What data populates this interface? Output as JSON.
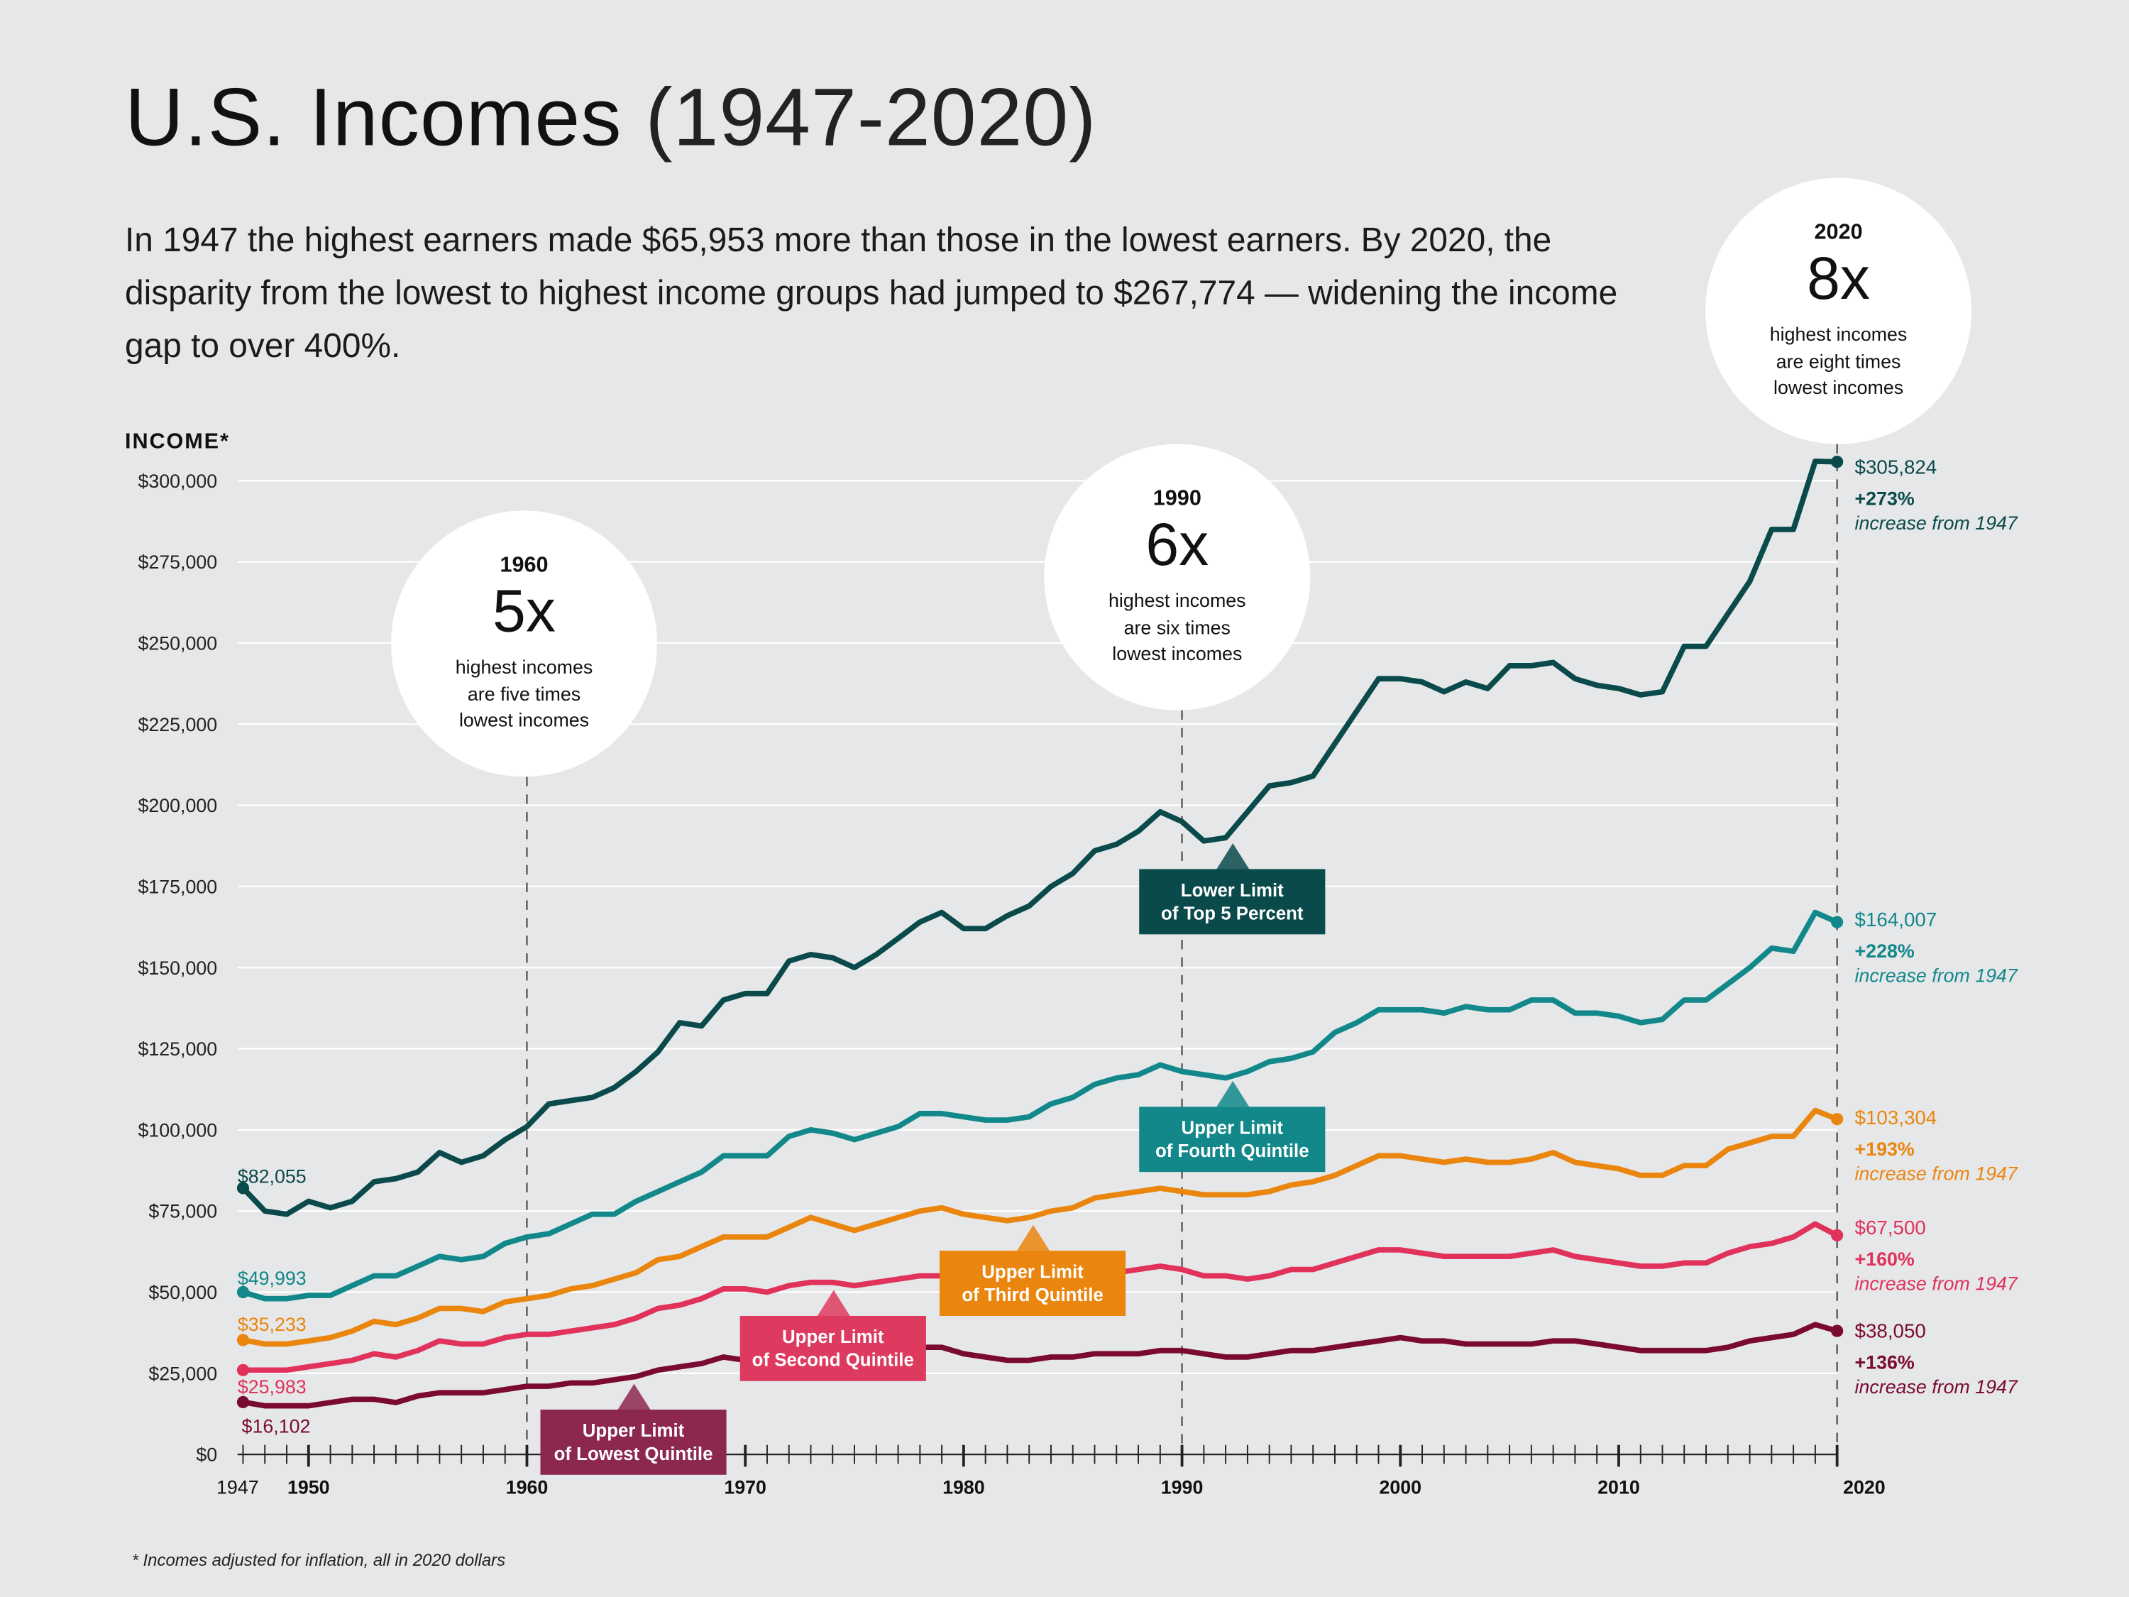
{
  "header": {
    "title": "U.S. Incomes",
    "title_years": "(1947-2020)",
    "intro": "In 1947 the highest earners made $65,953 more than those in the lowest earners. By 2020, the disparity from the lowest to highest income groups had jumped to $267,774 — widening the income gap to over 400%."
  },
  "circles": [
    {
      "year": "1960",
      "multiple": "5x",
      "line1": "highest incomes",
      "line2": "are five times",
      "line3": "lowest incomes"
    },
    {
      "year": "1990",
      "multiple": "6x",
      "line1": "highest incomes",
      "line2": "are six times",
      "line3": "lowest incomes"
    },
    {
      "year": "2020",
      "multiple": "8x",
      "line1": "highest incomes",
      "line2": "are eight times",
      "line3": "lowest incomes"
    }
  ],
  "footnote": "* Incomes adjusted for inflation, all in 2020 dollars",
  "chart_data": {
    "type": "line",
    "title": "U.S. Incomes (1947-2020)",
    "ylabel": "INCOME*",
    "xlabel": "",
    "xlim": [
      1947,
      2020
    ],
    "ylim": [
      0,
      300000
    ],
    "grid": true,
    "y_ticks": [
      "$0",
      "$25,000",
      "$50,000",
      "$75,000",
      "$100,000",
      "$125,000",
      "$150,000",
      "$175,000",
      "$200,000",
      "$225,000",
      "$250,000",
      "$275,000",
      "$300,000"
    ],
    "y_tick_values": [
      0,
      25000,
      50000,
      75000,
      100000,
      125000,
      150000,
      175000,
      200000,
      225000,
      250000,
      275000,
      300000
    ],
    "x_tick_labels": [
      {
        "year": 1947,
        "label": "1947",
        "bold": false
      },
      {
        "year": 1950,
        "label": "1950",
        "bold": true
      },
      {
        "year": 1960,
        "label": "1960",
        "bold": true
      },
      {
        "year": 1970,
        "label": "1970",
        "bold": true
      },
      {
        "year": 1980,
        "label": "1980",
        "bold": true
      },
      {
        "year": 1990,
        "label": "1990",
        "bold": true
      },
      {
        "year": 2000,
        "label": "2000",
        "bold": true
      },
      {
        "year": 2010,
        "label": "2010",
        "bold": true
      },
      {
        "year": 2020,
        "label": "2020",
        "bold": true
      }
    ],
    "reference_years": [
      1960,
      1990,
      2020
    ],
    "series": [
      {
        "name": "Lower Limit of Top 5 Percent",
        "line1": "Lower Limit",
        "line2": "of Top 5 Percent",
        "color": "#0b4a4b",
        "box_color": "#0b4a4b",
        "start_label": "$82,055",
        "end_label": "$305,824",
        "pct": "+273%",
        "pct_text": "increase from 1947",
        "values": [
          82055,
          75000,
          74000,
          78000,
          76000,
          78000,
          84000,
          85000,
          87000,
          93000,
          90000,
          92000,
          97000,
          101000,
          108000,
          109000,
          110000,
          113000,
          118000,
          124000,
          133000,
          132000,
          140000,
          142000,
          142000,
          152000,
          154000,
          153000,
          150000,
          154000,
          159000,
          164000,
          167000,
          162000,
          162000,
          166000,
          169000,
          175000,
          179000,
          186000,
          188000,
          192000,
          198000,
          195000,
          189000,
          190000,
          198000,
          206000,
          207000,
          209000,
          219000,
          229000,
          239000,
          239000,
          238000,
          235000,
          238000,
          236000,
          243000,
          243000,
          244000,
          239000,
          237000,
          236000,
          234000,
          235000,
          249000,
          249000,
          259000,
          269000,
          285000,
          285000,
          306000,
          305824
        ]
      },
      {
        "name": "Upper Limit of Fourth Quintile",
        "line1": "Upper Limit",
        "line2": "of Fourth Quintile",
        "color": "#12888a",
        "box_color": "#12888a",
        "start_label": "$49,993",
        "end_label": "$164,007",
        "pct": "+228%",
        "pct_text": "increase from 1947",
        "values": [
          49993,
          48000,
          48000,
          49000,
          49000,
          52000,
          55000,
          55000,
          58000,
          61000,
          60000,
          61000,
          65000,
          67000,
          68000,
          71000,
          74000,
          74000,
          78000,
          81000,
          84000,
          87000,
          92000,
          92000,
          92000,
          98000,
          100000,
          99000,
          97000,
          99000,
          101000,
          105000,
          105000,
          104000,
          103000,
          103000,
          104000,
          108000,
          110000,
          114000,
          116000,
          117000,
          120000,
          118000,
          117000,
          116000,
          118000,
          121000,
          122000,
          124000,
          130000,
          133000,
          137000,
          137000,
          137000,
          136000,
          138000,
          137000,
          137000,
          140000,
          140000,
          136000,
          136000,
          135000,
          133000,
          134000,
          140000,
          140000,
          145000,
          150000,
          156000,
          155000,
          167000,
          164007
        ]
      },
      {
        "name": "Upper Limit of Third Quintile",
        "line1": "Upper Limit",
        "line2": "of Third Quintile",
        "color": "#ea850e",
        "box_color": "#ea850e",
        "start_label": "$35,233",
        "end_label": "$103,304",
        "pct": "+193%",
        "pct_text": "increase from 1947",
        "values": [
          35233,
          34000,
          34000,
          35000,
          36000,
          38000,
          41000,
          40000,
          42000,
          45000,
          45000,
          44000,
          47000,
          48000,
          49000,
          51000,
          52000,
          54000,
          56000,
          60000,
          61000,
          64000,
          67000,
          67000,
          67000,
          70000,
          73000,
          71000,
          69000,
          71000,
          73000,
          75000,
          76000,
          74000,
          73000,
          72000,
          73000,
          75000,
          76000,
          79000,
          80000,
          81000,
          82000,
          81000,
          80000,
          80000,
          80000,
          81000,
          83000,
          84000,
          86000,
          89000,
          92000,
          92000,
          91000,
          90000,
          91000,
          90000,
          90000,
          91000,
          93000,
          90000,
          89000,
          88000,
          86000,
          86000,
          89000,
          89000,
          94000,
          96000,
          98000,
          98000,
          106000,
          103304
        ]
      },
      {
        "name": "Upper Limit of Second Quintile",
        "line1": "Upper Limit",
        "line2": "of Second Quintile",
        "color": "#e0325b",
        "box_color": "#de3a5f",
        "start_label": "$25,983",
        "end_label": "$67,500",
        "pct": "+160%",
        "pct_text": "increase from 1947",
        "values": [
          25983,
          26000,
          26000,
          27000,
          28000,
          29000,
          31000,
          30000,
          32000,
          35000,
          34000,
          34000,
          36000,
          37000,
          37000,
          38000,
          39000,
          40000,
          42000,
          45000,
          46000,
          48000,
          51000,
          51000,
          50000,
          52000,
          53000,
          53000,
          52000,
          53000,
          54000,
          55000,
          55000,
          54000,
          53000,
          53000,
          54000,
          55000,
          55000,
          56000,
          56000,
          57000,
          58000,
          57000,
          55000,
          55000,
          54000,
          55000,
          57000,
          57000,
          59000,
          61000,
          63000,
          63000,
          62000,
          61000,
          61000,
          61000,
          61000,
          62000,
          63000,
          61000,
          60000,
          59000,
          58000,
          58000,
          59000,
          59000,
          62000,
          64000,
          65000,
          67000,
          71000,
          67500
        ]
      },
      {
        "name": "Upper Limit of Lowest Quintile",
        "line1": "Upper Limit",
        "line2": "of Lowest Quintile",
        "color": "#7a0a32",
        "box_color": "#8c2850",
        "start_label": "$16,102",
        "end_label": "$38,050",
        "pct": "+136%",
        "pct_text": "increase from 1947",
        "values": [
          16102,
          15000,
          15000,
          15000,
          16000,
          17000,
          17000,
          16000,
          18000,
          19000,
          19000,
          19000,
          20000,
          21000,
          21000,
          22000,
          22000,
          23000,
          24000,
          26000,
          27000,
          28000,
          30000,
          29000,
          29000,
          31000,
          32000,
          31000,
          30000,
          31000,
          32000,
          33000,
          33000,
          31000,
          30000,
          29000,
          29000,
          30000,
          30000,
          31000,
          31000,
          31000,
          32000,
          32000,
          31000,
          30000,
          30000,
          31000,
          32000,
          32000,
          33000,
          34000,
          35000,
          36000,
          35000,
          35000,
          34000,
          34000,
          34000,
          34000,
          35000,
          35000,
          34000,
          33000,
          32000,
          32000,
          32000,
          32000,
          33000,
          35000,
          36000,
          37000,
          40000,
          38050
        ]
      }
    ]
  }
}
